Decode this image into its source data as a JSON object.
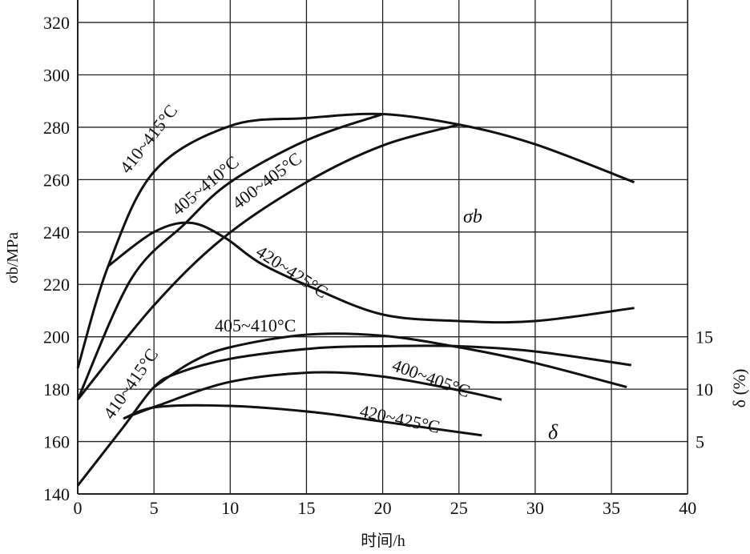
{
  "chart_data": {
    "type": "line",
    "title": "",
    "xlabel": "时间/h",
    "ylabel": "σb/MPa",
    "ylabel_right": "δ (%)",
    "xlim": [
      0,
      40
    ],
    "ylim": [
      140,
      320
    ],
    "ylim_right_note": "δ axis: 5 ↔ 160 MPa, 10 ↔ 180 MPa, 15 ↔ 200 MPa",
    "x_ticks": [
      "0",
      "5",
      "10",
      "15",
      "20",
      "25",
      "30",
      "35",
      "40"
    ],
    "y_ticks": [
      "140",
      "160",
      "180",
      "200",
      "220",
      "240",
      "260",
      "280",
      "300",
      "320"
    ],
    "y_right_ticks": [
      "5",
      "10",
      "15"
    ],
    "grid": true,
    "group_labels": {
      "sigma": "σb",
      "delta": "δ"
    },
    "sigma_series": [
      {
        "name": "410~415°C",
        "points": [
          [
            0,
            188
          ],
          [
            2,
            227
          ],
          [
            5,
            263
          ],
          [
            10,
            280.5
          ],
          [
            15,
            283.5
          ],
          [
            20,
            285
          ],
          [
            25,
            281
          ],
          [
            30,
            273.5
          ],
          [
            36.5,
            259
          ]
        ]
      },
      {
        "name": "405~410°C",
        "points": [
          [
            0,
            176
          ],
          [
            3.5,
            222
          ],
          [
            7,
            243
          ],
          [
            10,
            259
          ],
          [
            15,
            275
          ],
          [
            20,
            285
          ]
        ]
      },
      {
        "name": "400~405°C",
        "points": [
          [
            0,
            176
          ],
          [
            5,
            212
          ],
          [
            9.6,
            238
          ],
          [
            15,
            259
          ],
          [
            20,
            273
          ],
          [
            25,
            281
          ]
        ]
      },
      {
        "name": "420~425°C",
        "points": [
          [
            2,
            227
          ],
          [
            5,
            240
          ],
          [
            7.4,
            243.5
          ],
          [
            9.6,
            238
          ],
          [
            12,
            228
          ],
          [
            15.5,
            218.5
          ],
          [
            20,
            208.5
          ],
          [
            25,
            206
          ],
          [
            30,
            206
          ],
          [
            36.5,
            211
          ]
        ]
      }
    ],
    "delta_series": [
      {
        "name": "405~410°C",
        "points": [
          [
            5,
            10.2
          ],
          [
            7.5,
            12.6
          ],
          [
            10,
            14
          ],
          [
            15,
            15.2
          ],
          [
            20,
            15.1
          ],
          [
            25,
            14
          ],
          [
            30,
            12.5
          ],
          [
            36,
            10.2
          ]
        ]
      },
      {
        "name": "410~415°C",
        "points": [
          [
            0,
            0.8
          ],
          [
            3,
            6.4
          ],
          [
            5,
            10.2
          ],
          [
            6.5,
            11.5
          ],
          [
            10,
            12.9
          ],
          [
            15.5,
            13.9
          ],
          [
            20,
            14.1
          ],
          [
            25,
            14.1
          ],
          [
            30,
            13.6
          ],
          [
            36.3,
            12.3
          ]
        ]
      },
      {
        "name": "400~405°C",
        "points": [
          [
            3,
            7.2
          ],
          [
            5.2,
            8.4
          ],
          [
            10,
            10.7
          ],
          [
            15.5,
            11.6
          ],
          [
            20,
            11.2
          ],
          [
            25,
            9.9
          ],
          [
            27.8,
            9
          ]
        ]
      },
      {
        "name": "420~425°C",
        "points": [
          [
            3,
            7.2
          ],
          [
            5.2,
            8.3
          ],
          [
            10,
            8.4
          ],
          [
            15.5,
            7.8
          ],
          [
            20,
            6.9
          ],
          [
            26.5,
            5.6
          ]
        ]
      }
    ]
  }
}
